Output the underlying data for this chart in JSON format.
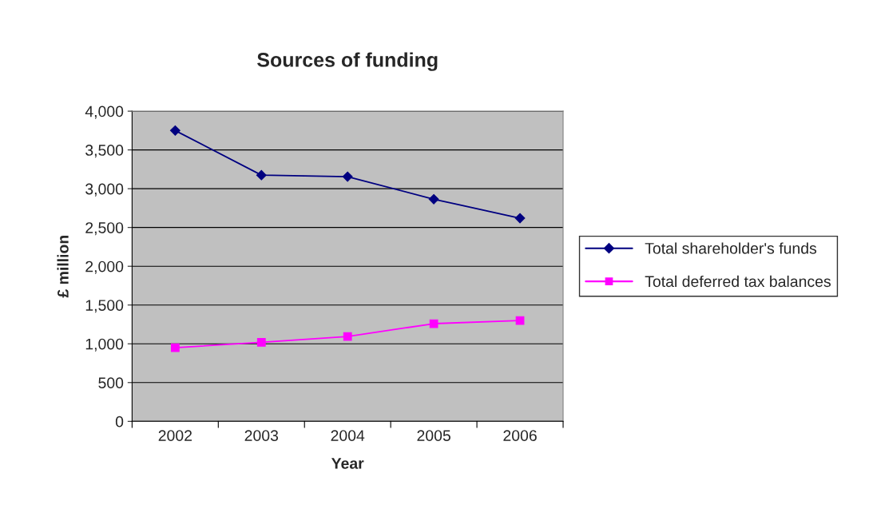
{
  "chart_data": {
    "type": "line",
    "title": "Sources of funding",
    "xlabel": "Year",
    "ylabel": "£ million",
    "categories": [
      "2002",
      "2003",
      "2004",
      "2005",
      "2006"
    ],
    "series": [
      {
        "name": "Total shareholder's funds",
        "color": "#000080",
        "marker": "diamond",
        "values": [
          3750,
          3175,
          3155,
          2865,
          2620
        ]
      },
      {
        "name": "Total deferred tax balances",
        "color": "#ff00ff",
        "marker": "square",
        "values": [
          950,
          1020,
          1095,
          1260,
          1300
        ]
      }
    ],
    "ylim": [
      0,
      4000
    ],
    "yticks": [
      {
        "value": 0,
        "label": "0"
      },
      {
        "value": 500,
        "label": "500"
      },
      {
        "value": 1000,
        "label": "1,000"
      },
      {
        "value": 1500,
        "label": "1,500"
      },
      {
        "value": 2000,
        "label": "2,000"
      },
      {
        "value": 2500,
        "label": "2,500"
      },
      {
        "value": 3000,
        "label": "3,000"
      },
      {
        "value": 3500,
        "label": "3,500"
      },
      {
        "value": 4000,
        "label": "4,000"
      }
    ],
    "grid": "y",
    "legend": "right"
  }
}
